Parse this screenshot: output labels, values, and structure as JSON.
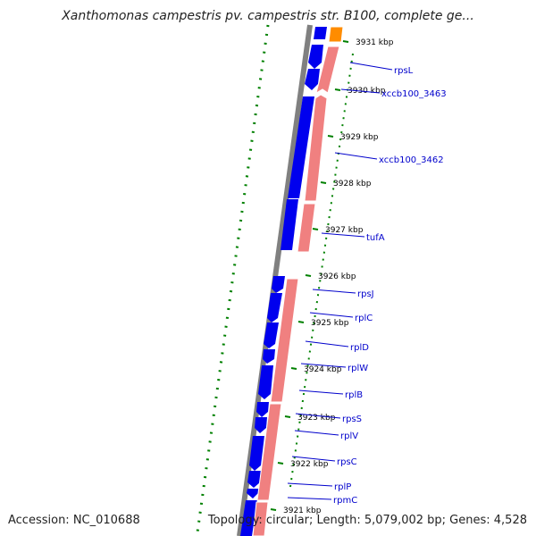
{
  "title": "Xanthomonas campestris pv. campestris str. B100, complete ge...",
  "accession_text": "Accession: NC_010688",
  "summary_text": "Topology: circular; Length: 5,079,002 bp; Genes: 4,528",
  "colors": {
    "backbone": "#808080",
    "forward_cds": "#0000ee",
    "reverse_feature": "#f08080",
    "orange_feature": "#ff8c00",
    "tick": "#008000",
    "label": "#0000cc"
  },
  "ruler": [
    {
      "label": "3931 kbp"
    },
    {
      "label": "3930 kbp"
    },
    {
      "label": "3929 kbp"
    },
    {
      "label": "3928 kbp"
    },
    {
      "label": "3927 kbp"
    },
    {
      "label": "3926 kbp"
    },
    {
      "label": "3925 kbp"
    },
    {
      "label": "3924 kbp"
    },
    {
      "label": "3923 kbp"
    },
    {
      "label": "3922 kbp"
    },
    {
      "label": "3921 kbp"
    }
  ],
  "genes": [
    {
      "name": "rpsL"
    },
    {
      "name": "xccb100_3463"
    },
    {
      "name": "xccb100_3462"
    },
    {
      "name": "tufA"
    },
    {
      "name": "rpsJ"
    },
    {
      "name": "rplC"
    },
    {
      "name": "rplD"
    },
    {
      "name": "rplW"
    },
    {
      "name": "rplB"
    },
    {
      "name": "rpsS"
    },
    {
      "name": "rplV"
    },
    {
      "name": "rpsC"
    },
    {
      "name": "rplP"
    },
    {
      "name": "rpmC"
    }
  ]
}
